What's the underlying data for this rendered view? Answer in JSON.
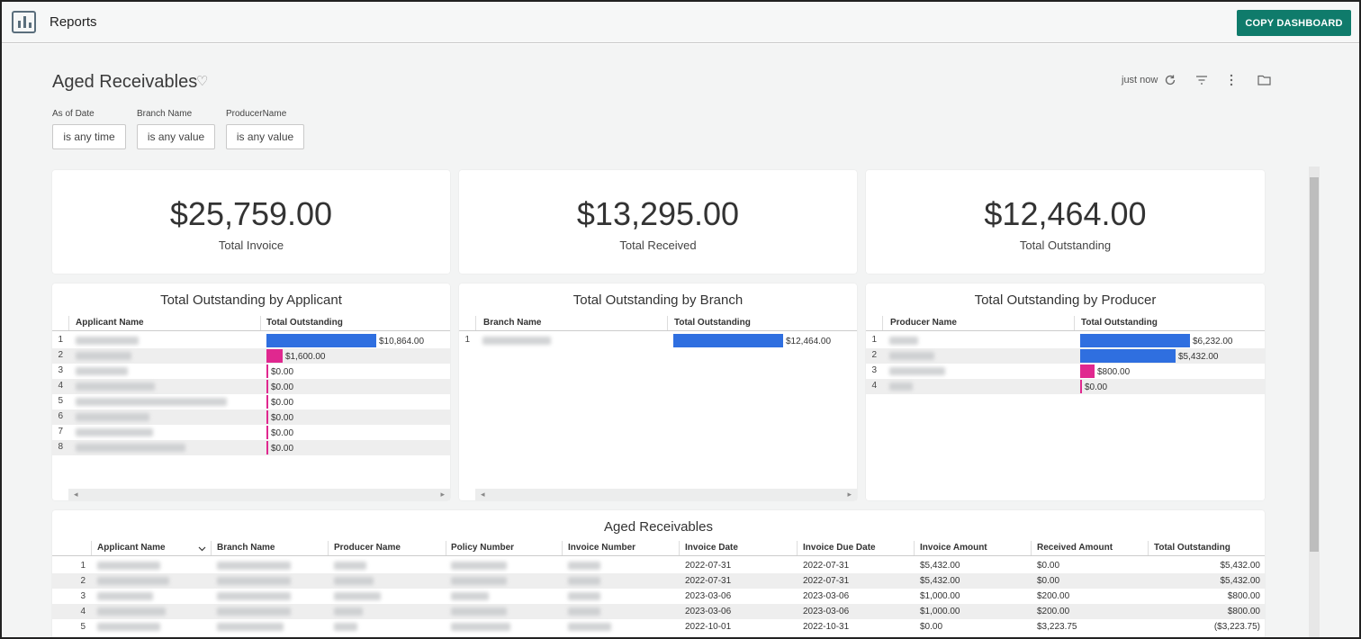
{
  "app": {
    "title": "Reports",
    "copy_button": "COPY DASHBOARD"
  },
  "dashboard": {
    "title": "Aged Receivables",
    "last_updated": "just now",
    "filters": [
      {
        "label": "As of Date",
        "value": "is any time"
      },
      {
        "label": "Branch Name",
        "value": "is any value"
      },
      {
        "label": "ProducerName",
        "value": "is any value"
      }
    ]
  },
  "kpis": [
    {
      "value": "$25,759.00",
      "label": "Total Invoice"
    },
    {
      "value": "$13,295.00",
      "label": "Total Received"
    },
    {
      "value": "$12,464.00",
      "label": "Total Outstanding"
    }
  ],
  "by_applicant": {
    "title": "Total Outstanding by Applicant",
    "col1": "Applicant Name",
    "col2": "Total Outstanding",
    "rows": [
      {
        "n": "1",
        "label": "$10,864.00",
        "value": 10864
      },
      {
        "n": "2",
        "label": "$1,600.00",
        "value": 1600
      },
      {
        "n": "3",
        "label": "$0.00",
        "value": 0
      },
      {
        "n": "4",
        "label": "$0.00",
        "value": 0
      },
      {
        "n": "5",
        "label": "$0.00",
        "value": 0
      },
      {
        "n": "6",
        "label": "$0.00",
        "value": 0
      },
      {
        "n": "7",
        "label": "$0.00",
        "value": 0
      },
      {
        "n": "8",
        "label": "$0.00",
        "value": 0
      }
    ]
  },
  "by_branch": {
    "title": "Total Outstanding by Branch",
    "col1": "Branch Name",
    "col2": "Total Outstanding",
    "rows": [
      {
        "n": "1",
        "label": "$12,464.00",
        "value": 12464
      }
    ]
  },
  "by_producer": {
    "title": "Total Outstanding by Producer",
    "col1": "Producer Name",
    "col2": "Total Outstanding",
    "rows": [
      {
        "n": "1",
        "label": "$6,232.00",
        "value": 6232
      },
      {
        "n": "2",
        "label": "$5,432.00",
        "value": 5432
      },
      {
        "n": "3",
        "label": "$800.00",
        "value": 800
      },
      {
        "n": "4",
        "label": "$0.00",
        "value": 0
      }
    ]
  },
  "aged_table": {
    "title": "Aged Receivables",
    "columns": [
      "Applicant Name",
      "Branch Name",
      "Producer Name",
      "Policy Number",
      "Invoice Number",
      "Invoice Date",
      "Invoice Due Date",
      "Invoice Amount",
      "Received Amount",
      "Total Outstanding"
    ],
    "rows": [
      {
        "n": "1",
        "invoice_date": "2022-07-31",
        "due_date": "2022-07-31",
        "invoice_amount": "$5,432.00",
        "received": "$0.00",
        "outstanding": "$5,432.00"
      },
      {
        "n": "2",
        "invoice_date": "2022-07-31",
        "due_date": "2022-07-31",
        "invoice_amount": "$5,432.00",
        "received": "$0.00",
        "outstanding": "$5,432.00"
      },
      {
        "n": "3",
        "invoice_date": "2023-03-06",
        "due_date": "2023-03-06",
        "invoice_amount": "$1,000.00",
        "received": "$200.00",
        "outstanding": "$800.00"
      },
      {
        "n": "4",
        "invoice_date": "2023-03-06",
        "due_date": "2023-03-06",
        "invoice_amount": "$1,000.00",
        "received": "$200.00",
        "outstanding": "$800.00"
      },
      {
        "n": "5",
        "invoice_date": "2022-10-01",
        "due_date": "2022-10-31",
        "invoice_amount": "$0.00",
        "received": "$3,223.75",
        "outstanding": "($3,223.75)"
      }
    ]
  },
  "colors": {
    "accent": "#0f7b6b",
    "bar_blue": "#2f6fe0",
    "bar_pink": "#e0288f"
  },
  "icons": [
    "bar-chart-icon",
    "heart-icon",
    "refresh-icon",
    "filter-icon",
    "more-vert-icon",
    "folder-icon",
    "sort-chevron-icon",
    "scroll-left-icon",
    "scroll-right-icon"
  ]
}
